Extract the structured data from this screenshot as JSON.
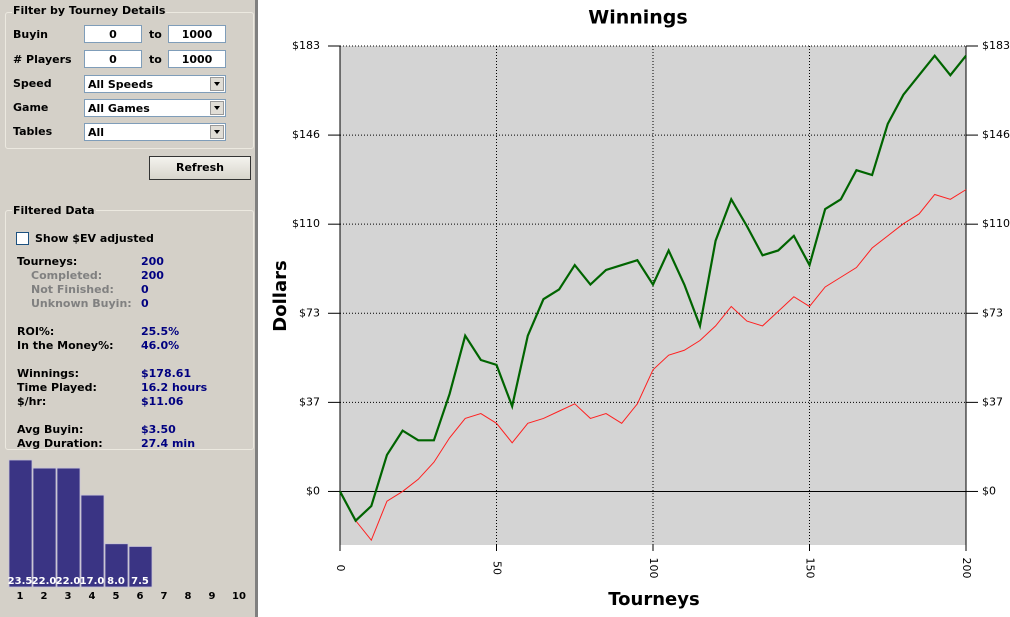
{
  "sidebar": {
    "filter": {
      "title": "Filter by Tourney Details",
      "buyin": {
        "label": "Buyin",
        "min": "0",
        "to": "to",
        "max": "1000"
      },
      "players": {
        "label": "# Players",
        "min": "0",
        "to": "to",
        "max": "1000"
      },
      "speed": {
        "label": "Speed",
        "value": "All Speeds"
      },
      "game": {
        "label": "Game",
        "value": "All Games"
      },
      "tables": {
        "label": "Tables",
        "value": "All"
      },
      "refresh": "Refresh"
    },
    "filtered": {
      "title": "Filtered Data",
      "ev_checkbox": "Show $EV adjusted",
      "groups": [
        [
          {
            "label": "Tourneys:",
            "value": "200",
            "sub": [
              {
                "label": "Completed:",
                "value": "200"
              },
              {
                "label": "Not Finished:",
                "value": "0"
              },
              {
                "label": "Unknown Buyin:",
                "value": "0"
              }
            ]
          }
        ],
        [
          {
            "label": "ROI%:",
            "value": "25.5%"
          },
          {
            "label": "In the Money%:",
            "value": "46.0%"
          }
        ],
        [
          {
            "label": "Winnings:",
            "value": "$178.61"
          },
          {
            "label": "Time Played:",
            "value": "16.2 hours"
          },
          {
            "label": "$/hr:",
            "value": "$11.06"
          }
        ],
        [
          {
            "label": "Avg Buyin:",
            "value": "$3.50"
          },
          {
            "label": "Avg Duration:",
            "value": "27.4 min"
          }
        ]
      ]
    },
    "finish_chart": {
      "type": "bar",
      "categories": [
        "1",
        "2",
        "3",
        "4",
        "5",
        "6",
        "7",
        "8",
        "9",
        "10"
      ],
      "values": [
        23.5,
        22,
        22,
        17,
        8,
        7.5,
        null,
        null,
        null,
        null
      ],
      "value_labels": [
        "23.5",
        "22.0",
        "22.0",
        "17.0",
        "8.0",
        "7.5",
        null,
        null,
        null,
        null
      ],
      "color": "#3a3484"
    }
  },
  "chart_data": {
    "type": "line",
    "title": "Winnings",
    "x_label": "Tourneys",
    "y_label": "Dollars",
    "x": [
      0,
      5,
      10,
      15,
      20,
      25,
      30,
      35,
      40,
      45,
      50,
      55,
      60,
      65,
      70,
      75,
      80,
      85,
      90,
      95,
      100,
      105,
      110,
      115,
      120,
      125,
      130,
      135,
      140,
      145,
      150,
      155,
      160,
      165,
      170,
      175,
      180,
      185,
      190,
      195,
      200
    ],
    "series": [
      {
        "color": "#006400",
        "values": [
          0,
          -12,
          -6,
          15,
          25,
          21,
          21,
          40,
          64,
          54,
          52,
          35,
          64,
          79,
          83,
          93,
          85,
          91,
          93,
          95,
          85,
          99,
          85,
          68,
          103,
          120,
          109,
          97,
          99,
          105,
          93,
          116,
          120,
          132,
          130,
          151,
          163,
          171,
          179,
          171,
          179
        ]
      },
      {
        "color": "#ff2020",
        "values": [
          0,
          -12,
          -20,
          -4,
          0,
          5,
          12,
          22,
          30,
          32,
          28,
          20,
          28,
          30,
          33,
          36,
          30,
          32,
          28,
          36,
          50,
          56,
          58,
          62,
          68,
          76,
          70,
          68,
          74,
          80,
          76,
          84,
          88,
          92,
          100,
          105,
          110,
          114,
          122,
          120,
          124
        ]
      }
    ],
    "xlim": [
      0,
      200
    ],
    "xticks": [
      0,
      50,
      100,
      150,
      200
    ],
    "ylim": [
      -22,
      183
    ],
    "yticks": [
      {
        "value": 0,
        "label": "$0"
      },
      {
        "value": 36.6,
        "label": "$37"
      },
      {
        "value": 73.2,
        "label": "$73"
      },
      {
        "value": 109.8,
        "label": "$110"
      },
      {
        "value": 146.4,
        "label": "$146"
      },
      {
        "value": 183,
        "label": "$183"
      }
    ],
    "y2lim": [
      -22,
      183
    ],
    "y2ticks": [
      {
        "value": 0,
        "label": "$0"
      },
      {
        "value": 36.6,
        "label": "$37"
      },
      {
        "value": 73.2,
        "label": "$73"
      },
      {
        "value": 109.8,
        "label": "$110"
      },
      {
        "value": 146.4,
        "label": "$146"
      },
      {
        "value": 183,
        "label": "$183"
      }
    ],
    "grid": true
  }
}
